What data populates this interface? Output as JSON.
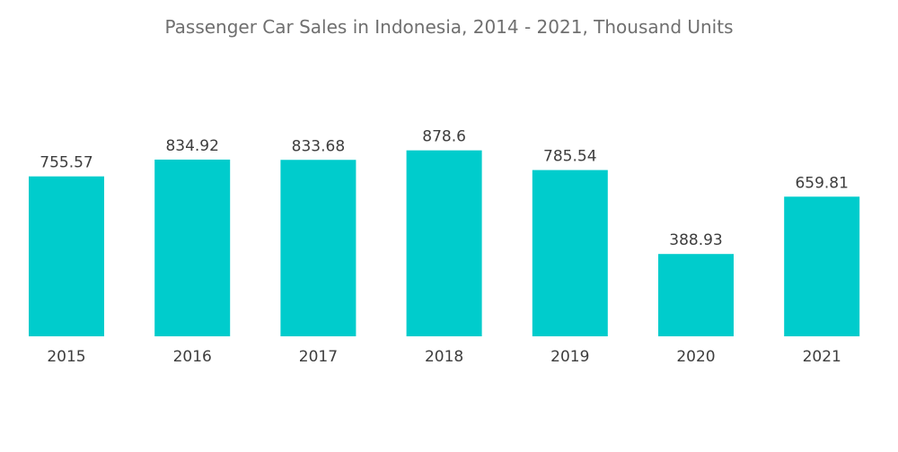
{
  "chart_data": {
    "type": "bar",
    "title": "Passenger Car Sales in Indonesia, 2014 - 2021, Thousand Units",
    "xlabel": "",
    "ylabel": "",
    "categories": [
      "2015",
      "2016",
      "2017",
      "2018",
      "2019",
      "2020",
      "2021"
    ],
    "values": [
      755.57,
      834.92,
      833.68,
      878.6,
      785.54,
      388.93,
      659.81
    ],
    "data_labels": [
      "755.57",
      "834.92",
      "833.68",
      "878.6",
      "785.54",
      "388.93",
      "659.81"
    ],
    "ylim": [
      0,
      1000
    ],
    "grid": false,
    "legend": "none",
    "colors": {
      "bar": "#00cccc",
      "text": "#3d3d3d",
      "title": "#6f6f6f"
    }
  }
}
